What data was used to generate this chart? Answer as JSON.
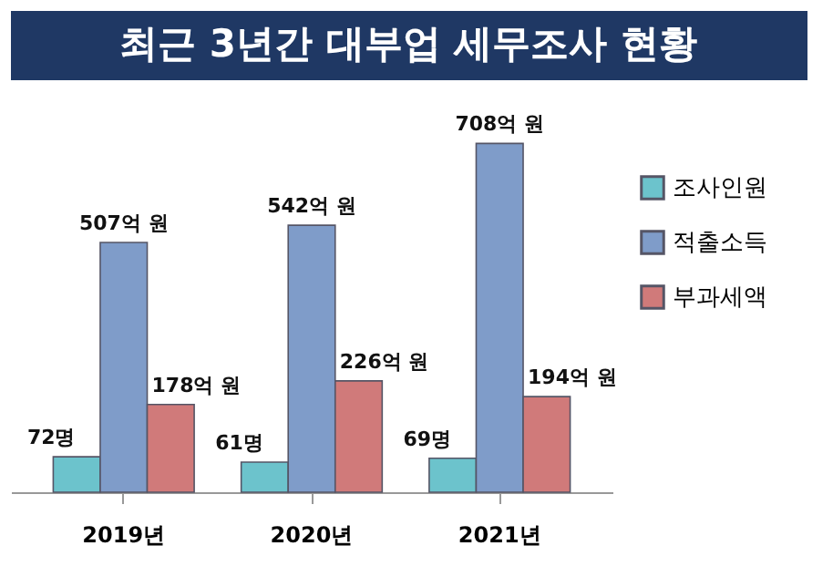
{
  "chart_data": {
    "type": "bar",
    "title": "최근 3년간 대부업 세무조사 현황",
    "categories": [
      "2019년",
      "2020년",
      "2021년"
    ],
    "series": [
      {
        "name": "조사인원",
        "color": "#6cc3cc",
        "values": [
          72,
          61,
          69
        ],
        "value_labels": [
          "72명",
          "61명",
          "69명"
        ]
      },
      {
        "name": "적출소득",
        "color": "#7f9cc9",
        "values": [
          507,
          542,
          708
        ],
        "value_labels": [
          "507억 원",
          "542억 원",
          "708억 원"
        ]
      },
      {
        "name": "부과세액",
        "color": "#d07a7a",
        "values": [
          178,
          226,
          194
        ],
        "value_labels": [
          "178억 원",
          "226억 원",
          "194억 원"
        ]
      }
    ],
    "legend": "right",
    "grid": false
  }
}
